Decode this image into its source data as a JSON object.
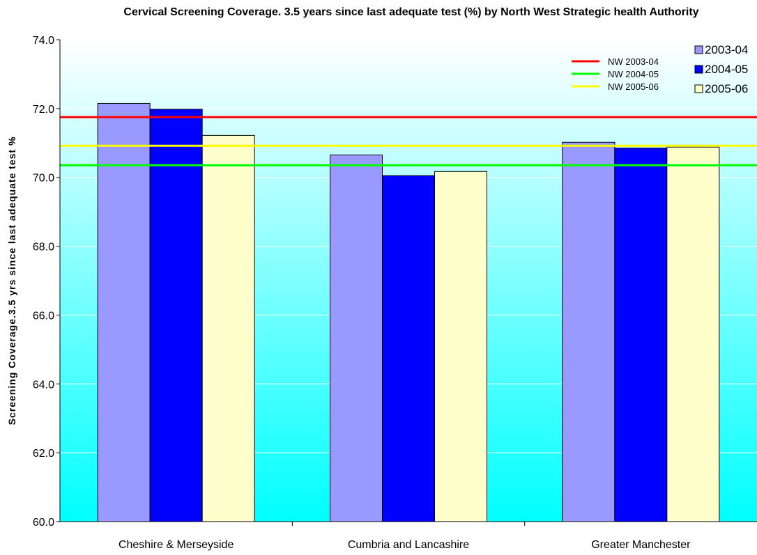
{
  "chart_data": {
    "type": "bar",
    "title": "Cervical Screening Coverage. 3.5 years since last adequate test (%) by North West Strategic health Authority",
    "ylabel": "Screening Coverage.3.5 yrs since last adequate test %",
    "xlabel": "",
    "ylim": [
      60,
      74
    ],
    "yticks": [
      "60.0",
      "62.0",
      "64.0",
      "66.0",
      "68.0",
      "70.0",
      "72.0",
      "74.0"
    ],
    "categories": [
      "Cheshire & Merseyside",
      "Cumbria and Lancashire",
      "Greater Manchester"
    ],
    "series": [
      {
        "name": "2003-04",
        "values": [
          72.15,
          70.65,
          71.02
        ],
        "color": "#9999FF"
      },
      {
        "name": "2004-05",
        "values": [
          71.98,
          70.05,
          70.85
        ],
        "color": "#0000FF"
      },
      {
        "name": "2005-06",
        "values": [
          71.22,
          70.17,
          70.88
        ],
        "color": "#FFFFCC"
      }
    ],
    "reference_lines": [
      {
        "name": "NW 2003-04",
        "value": 71.75,
        "color": "#FF0000"
      },
      {
        "name": "NW 2004-05",
        "value": 70.35,
        "color": "#00FF00"
      },
      {
        "name": "NW 2005-06",
        "value": 70.92,
        "color": "#FFFF00"
      }
    ],
    "background_gradient": [
      "#FFFFFF",
      "#00FFFF"
    ],
    "grid": true,
    "legend_position": "top-right"
  }
}
